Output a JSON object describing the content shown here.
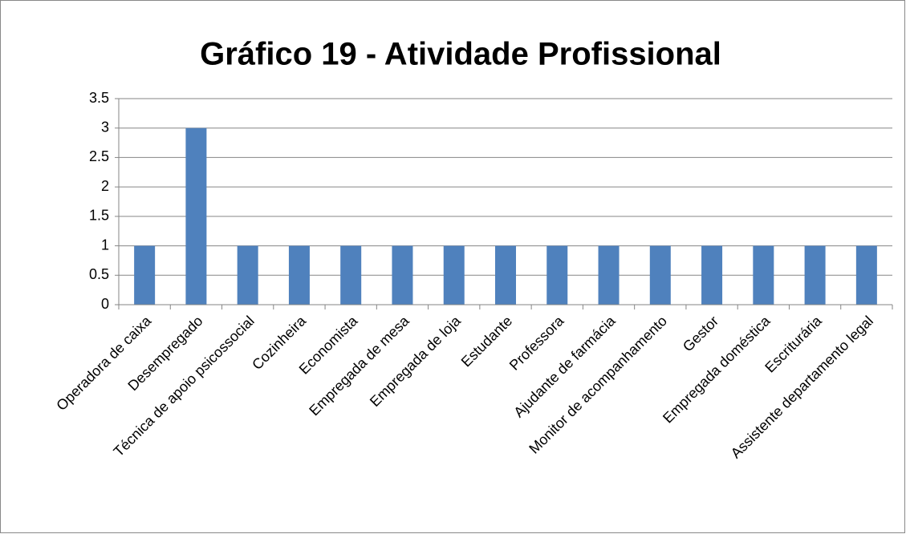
{
  "chart_data": {
    "type": "bar",
    "title": "Gráfico 19 - Atividade Profissional",
    "categories": [
      "Operadora de caixa",
      "Desempregado",
      "Técnica de apoio psicossocial",
      "Cozinheira",
      "Economista",
      "Empregada de mesa",
      "Empregada de loja",
      "Estudante",
      "Professora",
      "Ajudante de farmácia",
      "Monitor de acompanhamento",
      "Gestor",
      "Empregada doméstica",
      "Escriturária",
      "Assistente departamento legal"
    ],
    "values": [
      1,
      3,
      1,
      1,
      1,
      1,
      1,
      1,
      1,
      1,
      1,
      1,
      1,
      1,
      1
    ],
    "color": "#4f81bd",
    "ylim": [
      0,
      3.5
    ],
    "yticks": [
      0,
      0.5,
      1,
      1.5,
      2,
      2.5,
      3,
      3.5
    ],
    "grid": true
  }
}
